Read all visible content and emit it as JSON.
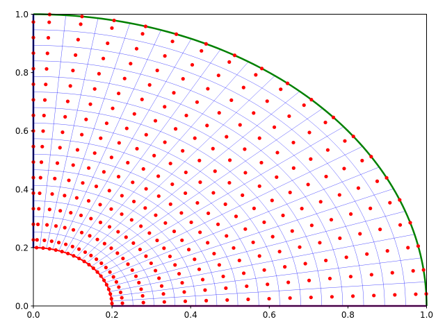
{
  "chart_data": {
    "type": "scatter",
    "title": "",
    "xlabel": "",
    "ylabel": "",
    "xlim": [
      0,
      1
    ],
    "ylim": [
      0,
      1
    ],
    "x_ticks": [
      "0.0",
      "0.2",
      "0.4",
      "0.6",
      "0.8",
      "1.0"
    ],
    "y_ticks": [
      "0.0",
      "0.2",
      "0.4",
      "0.6",
      "0.8",
      "1.0"
    ],
    "grid": false,
    "legend": "none",
    "mesh": {
      "r_inner": 0.2,
      "r_outer": 1.0,
      "theta_start_deg": 0,
      "theta_end_deg": 90,
      "radial_levels": 16,
      "angular_levels": 20
    },
    "series": [
      {
        "kind": "points",
        "color": "#ff0000"
      },
      {
        "kind": "outer-boundary-arc",
        "radius": 1.0,
        "color": "#008000"
      },
      {
        "kind": "inner-boundary-arc",
        "radius": 0.2,
        "color": "#ff0000"
      },
      {
        "kind": "bottom-edge",
        "color": "#800080"
      },
      {
        "kind": "left-edge",
        "color": "#0000aa"
      },
      {
        "kind": "mesh-lines",
        "color": "#0000ff"
      }
    ]
  }
}
